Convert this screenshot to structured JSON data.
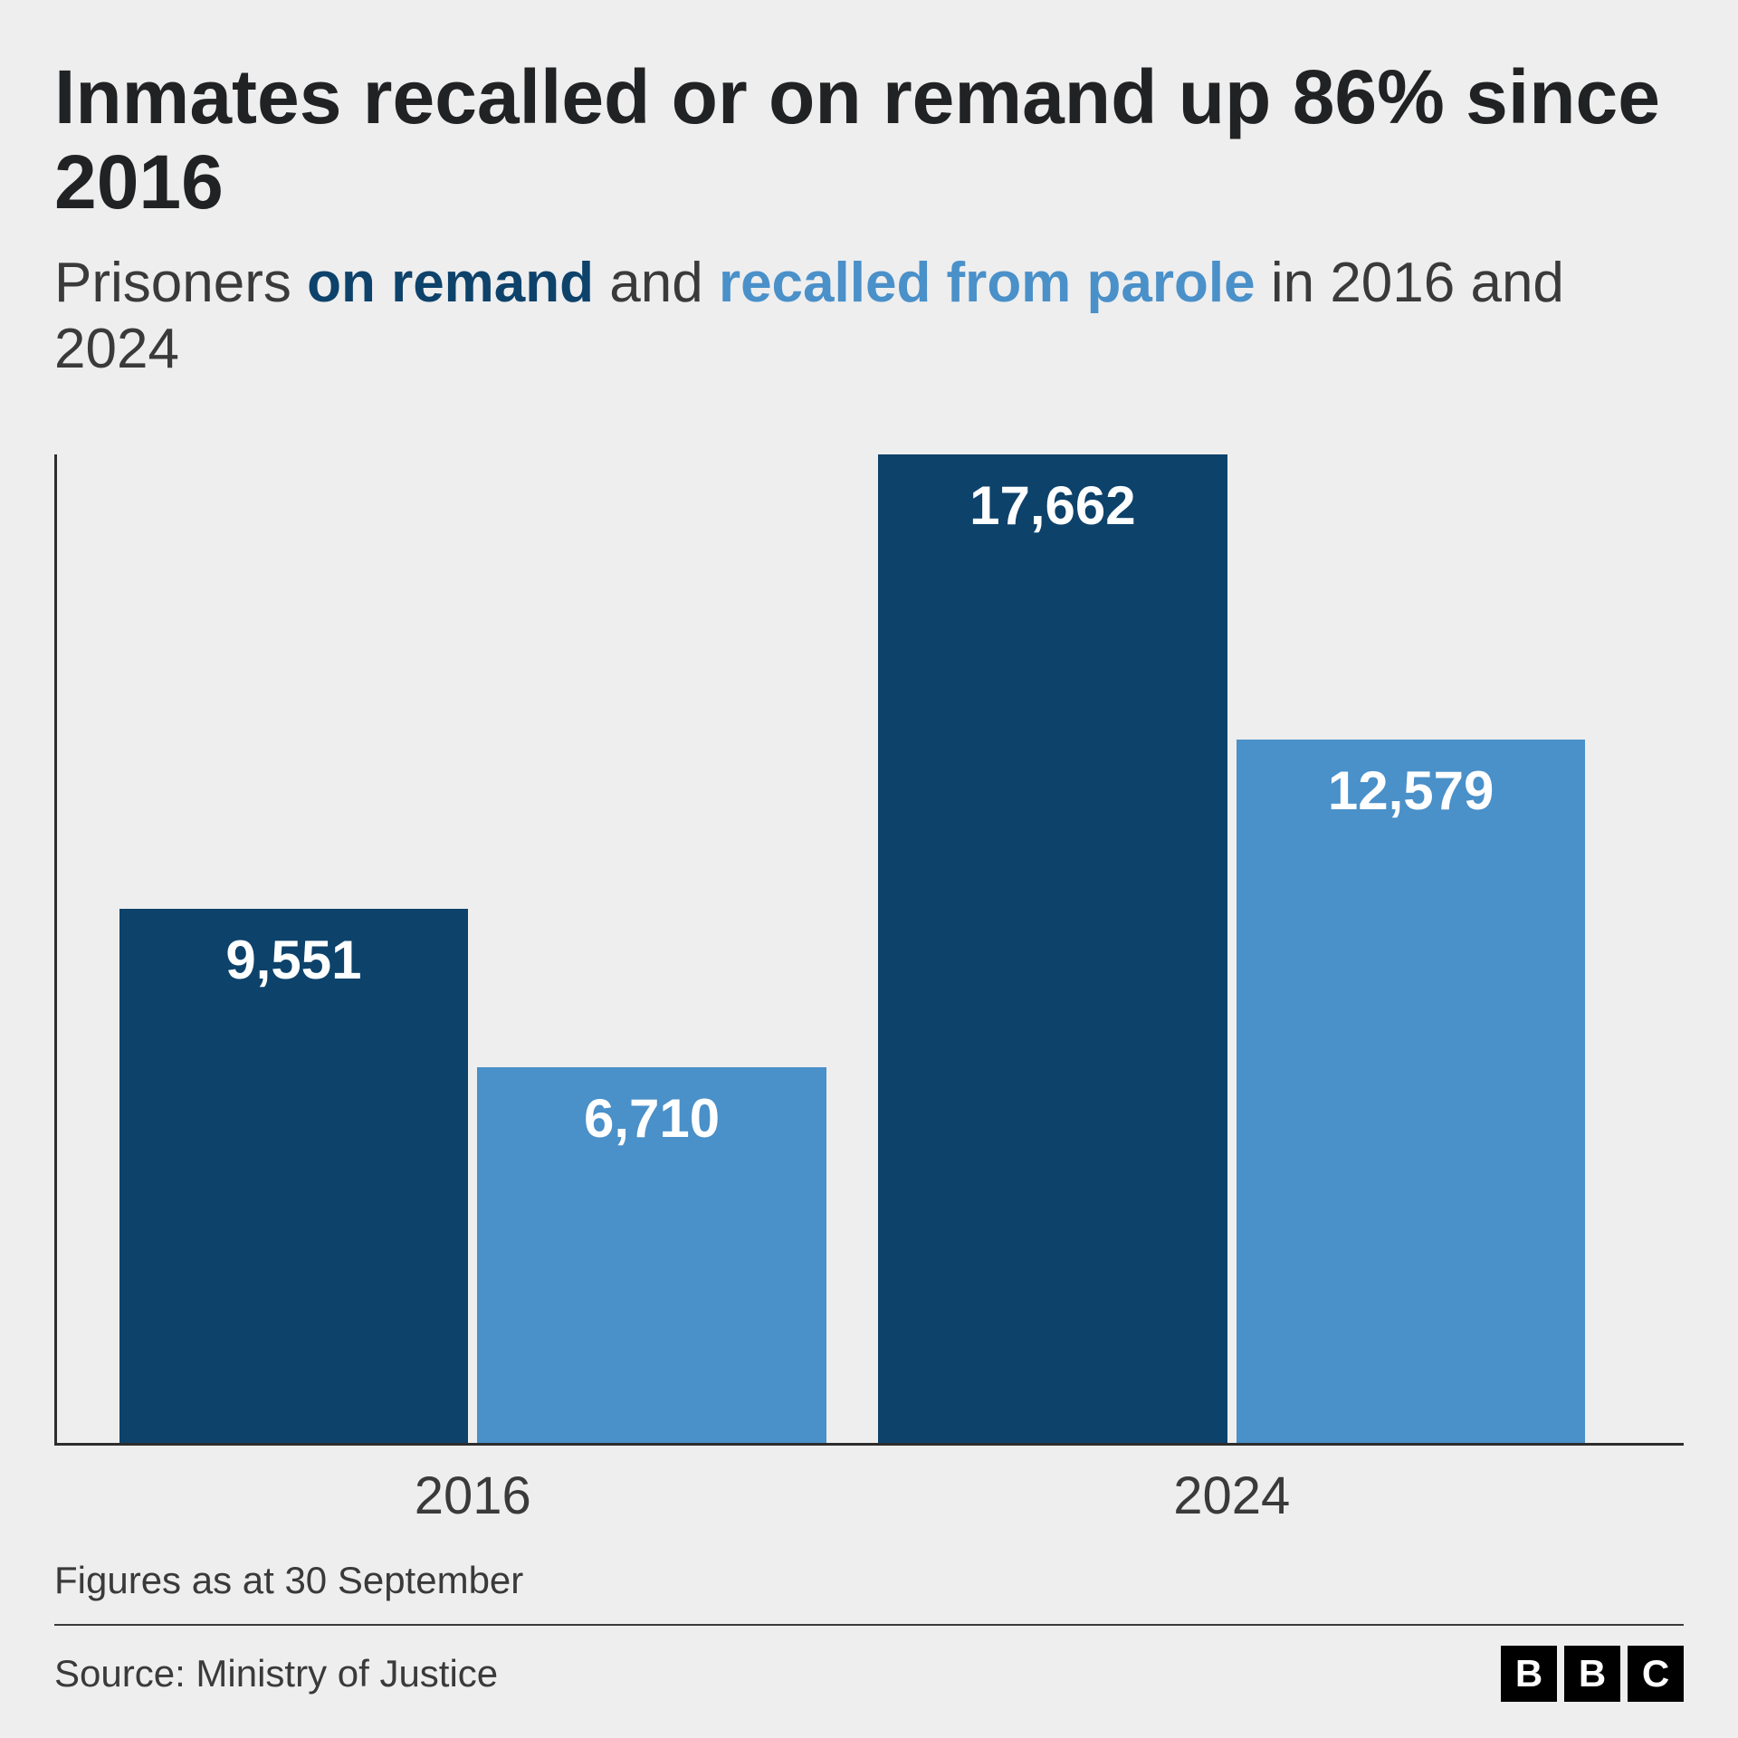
{
  "title": "Inmates recalled or on remand up 86% since 2016",
  "subtitle": {
    "prefix": "Prisoners ",
    "remand": "on remand",
    "mid": " and ",
    "recalled": "recalled from parole",
    "suffix": " in 2016 and 2024"
  },
  "chart": {
    "type": "bar",
    "y_max": 17662,
    "background_color": "#eeeeee",
    "axis_color": "#2d2d2d",
    "groups": [
      {
        "label": "2016",
        "bars": [
          {
            "value": 9551,
            "display": "9,551",
            "color": "#0d426b"
          },
          {
            "value": 6710,
            "display": "6,710",
            "color": "#4a90c9"
          }
        ]
      },
      {
        "label": "2024",
        "bars": [
          {
            "value": 17662,
            "display": "17,662",
            "color": "#0d426b"
          },
          {
            "value": 12579,
            "display": "12,579",
            "color": "#4a90c9"
          }
        ]
      }
    ],
    "value_label_color": "#ffffff",
    "value_label_fontsize": 60,
    "x_label_fontsize": 58,
    "title_fontsize": 84,
    "subtitle_fontsize": 62
  },
  "footnote": "Figures as at 30 September",
  "source": "Source: Ministry of Justice",
  "logo_letters": [
    "B",
    "B",
    "C"
  ]
}
